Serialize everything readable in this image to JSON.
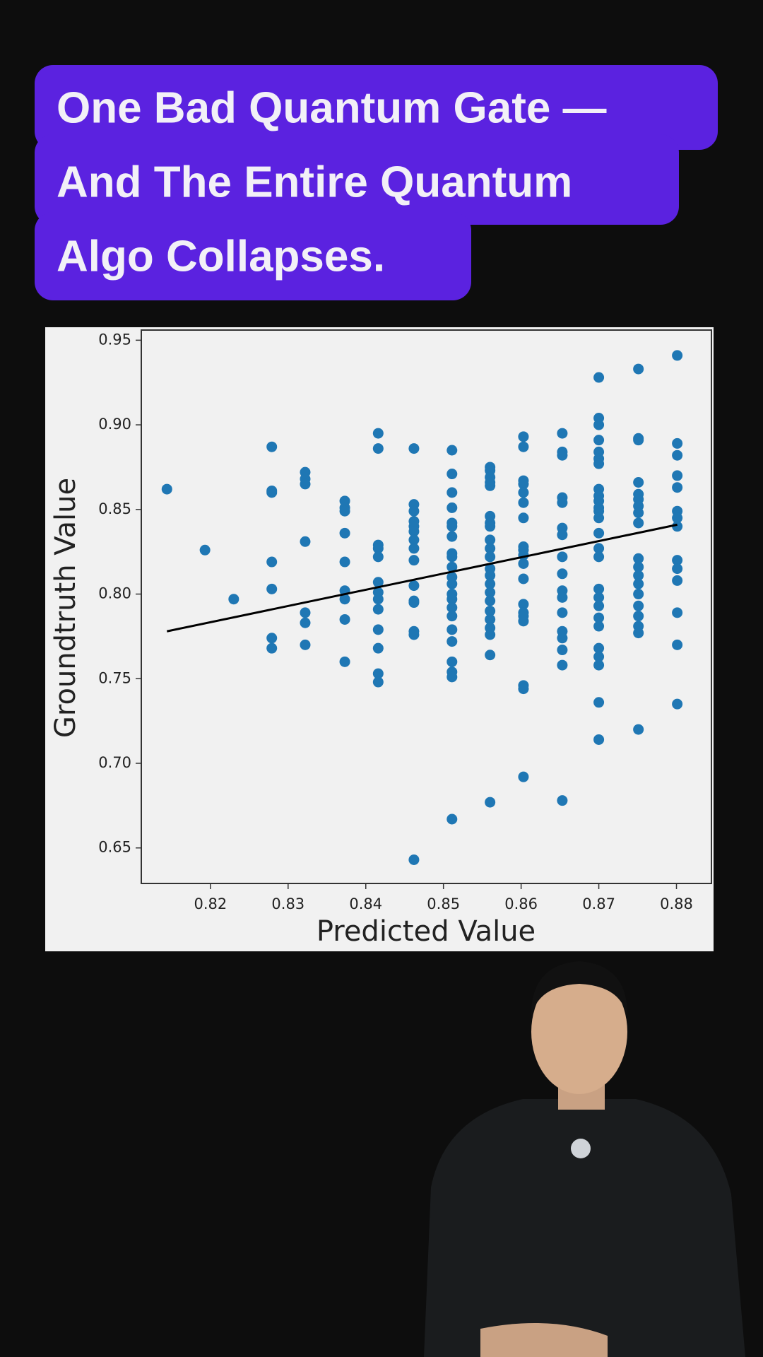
{
  "caption": [
    "One Bad Quantum Gate —",
    "And The Entire Quantum",
    "Algo Collapses."
  ],
  "chart_data": {
    "type": "scatter",
    "x_label": "Predicted Value",
    "y_label": "Groundtruth Value",
    "xlim": [
      0.8111,
      0.8845
    ],
    "ylim": [
      0.629,
      0.956
    ],
    "xticks": [
      0.82,
      0.83,
      0.84,
      0.85,
      0.86,
      0.87,
      0.88
    ],
    "yticks": [
      0.65,
      {
        "value": 0.7,
        "label": "0.70"
      },
      0.75,
      {
        "value": 0.8,
        "label": "0.80"
      },
      0.85,
      {
        "value": 0.9,
        "label": "0.90"
      },
      0.95
    ],
    "color": "#1f77b4",
    "x": [
      0.8144,
      0.8193,
      0.823,
      0.8279,
      0.8279,
      0.8279,
      0.8279,
      0.8279,
      0.8279,
      0.8279,
      0.8322,
      0.8322,
      0.8322,
      0.8322,
      0.8322,
      0.8322,
      0.8322,
      0.8373,
      0.8373,
      0.8373,
      0.8373,
      0.8373,
      0.8373,
      0.8373,
      0.8373,
      0.8373,
      0.8416,
      0.8416,
      0.8416,
      0.8416,
      0.8416,
      0.8416,
      0.8416,
      0.8416,
      0.8416,
      0.8416,
      0.8416,
      0.8416,
      0.8416,
      0.8462,
      0.8462,
      0.8462,
      0.8462,
      0.8462,
      0.8462,
      0.8462,
      0.8462,
      0.8462,
      0.8462,
      0.8462,
      0.8462,
      0.8462,
      0.8462,
      0.8462,
      0.8511,
      0.8511,
      0.8511,
      0.8511,
      0.8511,
      0.8511,
      0.8511,
      0.8511,
      0.8511,
      0.8511,
      0.8511,
      0.8511,
      0.8511,
      0.8511,
      0.8511,
      0.8511,
      0.8511,
      0.8511,
      0.8511,
      0.8511,
      0.8511,
      0.8511,
      0.856,
      0.856,
      0.856,
      0.856,
      0.856,
      0.856,
      0.856,
      0.856,
      0.856,
      0.856,
      0.856,
      0.856,
      0.856,
      0.856,
      0.856,
      0.856,
      0.856,
      0.856,
      0.856,
      0.856,
      0.856,
      0.856,
      0.8603,
      0.8603,
      0.8603,
      0.8603,
      0.8603,
      0.8603,
      0.8603,
      0.8603,
      0.8603,
      0.8603,
      0.8603,
      0.8603,
      0.8603,
      0.8603,
      0.8603,
      0.8603,
      0.8603,
      0.8603,
      0.8603,
      0.8653,
      0.8653,
      0.8653,
      0.8653,
      0.8653,
      0.8653,
      0.8653,
      0.8653,
      0.8653,
      0.8653,
      0.8653,
      0.8653,
      0.8653,
      0.8653,
      0.8653,
      0.8653,
      0.8653,
      0.87,
      0.87,
      0.87,
      0.87,
      0.87,
      0.87,
      0.87,
      0.87,
      0.87,
      0.87,
      0.87,
      0.87,
      0.87,
      0.87,
      0.87,
      0.87,
      0.87,
      0.87,
      0.87,
      0.87,
      0.87,
      0.87,
      0.87,
      0.87,
      0.87,
      0.87,
      0.8751,
      0.8751,
      0.8751,
      0.8751,
      0.8751,
      0.8751,
      0.8751,
      0.8751,
      0.8751,
      0.8751,
      0.8751,
      0.8751,
      0.8751,
      0.8751,
      0.8751,
      0.8751,
      0.8751,
      0.8751,
      0.8751,
      0.8801,
      0.8801,
      0.8801,
      0.8801,
      0.8801,
      0.8801,
      0.8801,
      0.8801,
      0.8801,
      0.8801,
      0.8801,
      0.8801,
      0.8801,
      0.8801
    ],
    "values": [
      0.862,
      0.826,
      0.797,
      0.887,
      0.86,
      0.861,
      0.819,
      0.803,
      0.774,
      0.768,
      0.872,
      0.868,
      0.865,
      0.831,
      0.789,
      0.783,
      0.77,
      0.855,
      0.851,
      0.849,
      0.819,
      0.802,
      0.797,
      0.785,
      0.76,
      0.836,
      0.895,
      0.886,
      0.829,
      0.827,
      0.822,
      0.807,
      0.801,
      0.797,
      0.791,
      0.779,
      0.768,
      0.753,
      0.748,
      0.886,
      0.853,
      0.849,
      0.843,
      0.84,
      0.837,
      0.832,
      0.827,
      0.82,
      0.805,
      0.796,
      0.795,
      0.778,
      0.776,
      0.643,
      0.885,
      0.871,
      0.86,
      0.851,
      0.842,
      0.84,
      0.834,
      0.824,
      0.822,
      0.816,
      0.81,
      0.806,
      0.8,
      0.797,
      0.792,
      0.787,
      0.779,
      0.772,
      0.76,
      0.754,
      0.751,
      0.667,
      0.875,
      0.873,
      0.869,
      0.866,
      0.864,
      0.846,
      0.842,
      0.84,
      0.832,
      0.827,
      0.822,
      0.815,
      0.811,
      0.806,
      0.801,
      0.796,
      0.79,
      0.785,
      0.78,
      0.776,
      0.764,
      0.677,
      0.893,
      0.887,
      0.867,
      0.865,
      0.86,
      0.854,
      0.845,
      0.828,
      0.826,
      0.823,
      0.818,
      0.809,
      0.794,
      0.789,
      0.787,
      0.784,
      0.746,
      0.744,
      0.692,
      0.895,
      0.884,
      0.882,
      0.857,
      0.854,
      0.839,
      0.835,
      0.822,
      0.812,
      0.802,
      0.798,
      0.789,
      0.778,
      0.774,
      0.767,
      0.758,
      0.678,
      0.928,
      0.904,
      0.9,
      0.891,
      0.884,
      0.88,
      0.877,
      0.862,
      0.858,
      0.855,
      0.845,
      0.836,
      0.827,
      0.822,
      0.803,
      0.798,
      0.793,
      0.786,
      0.781,
      0.768,
      0.763,
      0.758,
      0.736,
      0.714,
      0.849,
      0.851,
      0.933,
      0.892,
      0.891,
      0.866,
      0.859,
      0.856,
      0.852,
      0.848,
      0.842,
      0.821,
      0.816,
      0.811,
      0.806,
      0.8,
      0.793,
      0.787,
      0.781,
      0.777,
      0.72,
      0.941,
      0.889,
      0.882,
      0.87,
      0.863,
      0.849,
      0.845,
      0.84,
      0.82,
      0.815,
      0.808,
      0.789,
      0.77,
      0.735
    ],
    "trend_line": {
      "x": [
        0.8144,
        0.8801
      ],
      "values": [
        0.778,
        0.841
      ],
      "color": "#000000"
    }
  }
}
